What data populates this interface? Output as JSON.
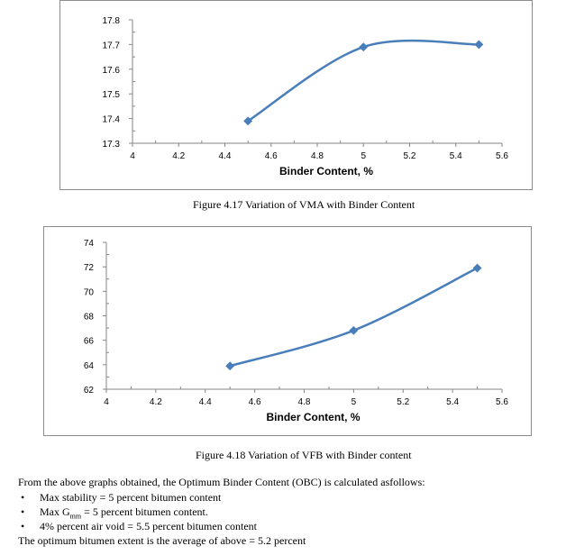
{
  "chart_data": [
    {
      "type": "line",
      "title": "",
      "xlabel": "Binder Content, %",
      "ylabel": "",
      "xlim": [
        4,
        5.6
      ],
      "ylim": [
        17.3,
        17.8
      ],
      "x_ticks": [
        "4",
        "4.2",
        "4.4",
        "4.6",
        "4.8",
        "5",
        "5.2",
        "5.4",
        "5.6"
      ],
      "y_ticks": [
        "17.3",
        "17.4",
        "17.5",
        "17.6",
        "17.7",
        "17.8"
      ],
      "x_tick_values": [
        4,
        4.2,
        4.4,
        4.6,
        4.8,
        5,
        5.2,
        5.4,
        5.6
      ],
      "y_tick_values": [
        17.3,
        17.4,
        17.5,
        17.6,
        17.7,
        17.8
      ],
      "series": [
        {
          "x": [
            4.5,
            5,
            5.5
          ],
          "values": [
            17.39,
            17.69,
            17.7
          ],
          "color": "#4a7ebb"
        }
      ],
      "grid": false,
      "legend": "none"
    },
    {
      "type": "line",
      "title": "",
      "xlabel": "Binder Content, %",
      "ylabel": "",
      "xlim": [
        4,
        5.6
      ],
      "ylim": [
        62,
        74
      ],
      "x_ticks": [
        "4",
        "4.2",
        "4.4",
        "4.6",
        "4.8",
        "5",
        "5.2",
        "5.4",
        "5.6"
      ],
      "y_ticks": [
        "62",
        "64",
        "66",
        "68",
        "70",
        "72",
        "74"
      ],
      "x_tick_values": [
        4,
        4.2,
        4.4,
        4.6,
        4.8,
        5,
        5.2,
        5.4,
        5.6
      ],
      "y_tick_values": [
        62,
        64,
        66,
        68,
        70,
        72,
        74
      ],
      "series": [
        {
          "x": [
            4.5,
            5,
            5.5
          ],
          "values": [
            63.9,
            66.8,
            71.9
          ],
          "color": "#4a7ebb"
        }
      ],
      "grid": false,
      "legend": "none"
    }
  ],
  "captions": {
    "fig1": "Figure 4.17 Variation of VMA with Binder Content",
    "fig2": "Figure 4.18 Variation of VFB with Binder content"
  },
  "text": {
    "intro": "From the above graphs obtained, the Optimum Binder Content (OBC) is calculated asfollows:",
    "bullet_char": "•",
    "bullets": [
      {
        "pre": "Max stability = 5 percent bitumen content",
        "sub": "",
        "post": ""
      },
      {
        "pre": "Max G",
        "sub": "mm",
        "post": " = 5 percent bitumen content."
      },
      {
        "pre": "4% percent air void = 5.5 percent bitumen content",
        "sub": "",
        "post": ""
      }
    ],
    "final": "The optimum bitumen extent is the average of above = 5.2 percent"
  }
}
